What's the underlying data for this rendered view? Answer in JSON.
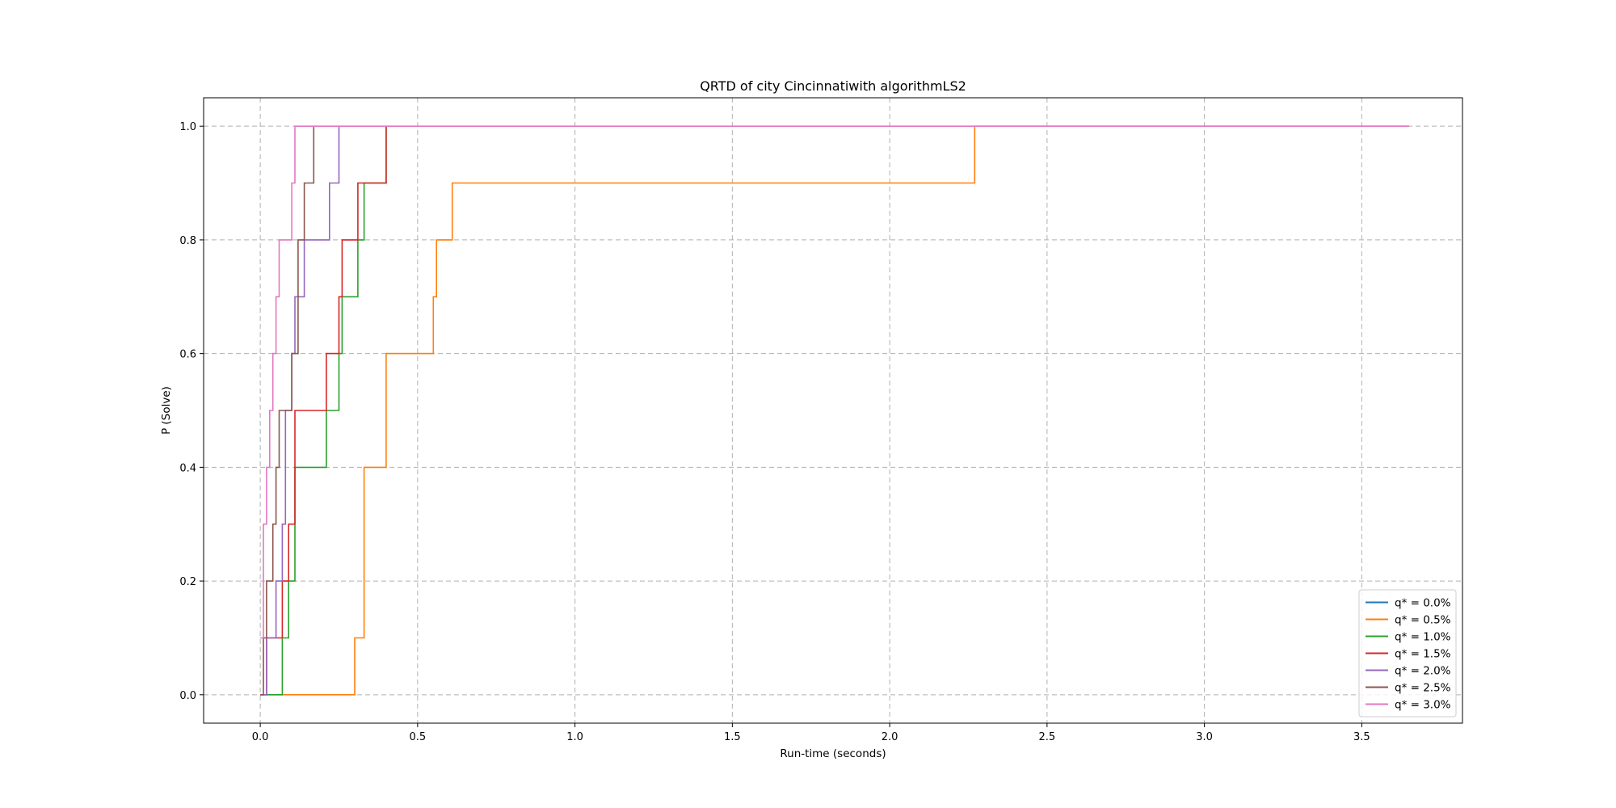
{
  "chart_data": {
    "type": "line",
    "title": "QRTD of city Cincinnatiwith algorithmLS2",
    "xlabel": "Run-time (seconds)",
    "ylabel": "P (Solve)",
    "xlim": [
      -0.18,
      3.82
    ],
    "ylim": [
      -0.05,
      1.05
    ],
    "xticks": [
      0.0,
      0.5,
      1.0,
      1.5,
      2.0,
      2.5,
      3.0,
      3.5
    ],
    "yticks": [
      0.0,
      0.2,
      0.4,
      0.6,
      0.8,
      1.0
    ],
    "xtick_labels": [
      "0.0",
      "0.5",
      "1.0",
      "1.5",
      "2.0",
      "2.5",
      "3.0",
      "3.5"
    ],
    "ytick_labels": [
      "0.0",
      "0.2",
      "0.4",
      "0.6",
      "0.8",
      "1.0"
    ],
    "grid": true,
    "legend_position": "lower-right",
    "step": "post",
    "series": [
      {
        "name": "q* = 0.0%",
        "color": "#1f77b4",
        "x": [],
        "y": []
      },
      {
        "name": "q* = 0.5%",
        "color": "#ff7f0e",
        "x": [
          0.0,
          0.3,
          0.33,
          0.4,
          0.55,
          0.56,
          0.61,
          2.27,
          3.65
        ],
        "y": [
          0.0,
          0.1,
          0.4,
          0.6,
          0.7,
          0.8,
          0.9,
          1.0,
          1.0
        ]
      },
      {
        "name": "q* = 1.0%",
        "color": "#2ca02c",
        "x": [
          0.0,
          0.07,
          0.09,
          0.11,
          0.21,
          0.25,
          0.26,
          0.31,
          0.33,
          0.4
        ],
        "y": [
          0.0,
          0.1,
          0.2,
          0.4,
          0.5,
          0.6,
          0.7,
          0.8,
          0.9,
          1.0
        ]
      },
      {
        "name": "q* = 1.5%",
        "color": "#d62728",
        "x": [
          0.0,
          0.02,
          0.07,
          0.09,
          0.11,
          0.21,
          0.25,
          0.26,
          0.31,
          0.4
        ],
        "y": [
          0.0,
          0.1,
          0.2,
          0.3,
          0.5,
          0.6,
          0.7,
          0.8,
          0.9,
          1.0
        ]
      },
      {
        "name": "q* = 2.0%",
        "color": "#9467bd",
        "x": [
          0.0,
          0.02,
          0.05,
          0.07,
          0.08,
          0.1,
          0.11,
          0.14,
          0.22,
          0.25
        ],
        "y": [
          0.0,
          0.1,
          0.2,
          0.3,
          0.5,
          0.6,
          0.7,
          0.8,
          0.9,
          1.0
        ]
      },
      {
        "name": "q* = 2.5%",
        "color": "#8c564b",
        "x": [
          0.0,
          0.01,
          0.02,
          0.04,
          0.05,
          0.06,
          0.1,
          0.12,
          0.14,
          0.17
        ],
        "y": [
          0.0,
          0.1,
          0.2,
          0.3,
          0.4,
          0.5,
          0.6,
          0.8,
          0.9,
          1.0
        ]
      },
      {
        "name": "q* = 3.0%",
        "color": "#e377c2",
        "x": [
          0.0,
          0.01,
          0.02,
          0.03,
          0.04,
          0.05,
          0.06,
          0.1,
          0.11,
          3.65
        ],
        "y": [
          0.1,
          0.3,
          0.4,
          0.5,
          0.6,
          0.7,
          0.8,
          0.9,
          1.0,
          1.0
        ]
      }
    ]
  }
}
